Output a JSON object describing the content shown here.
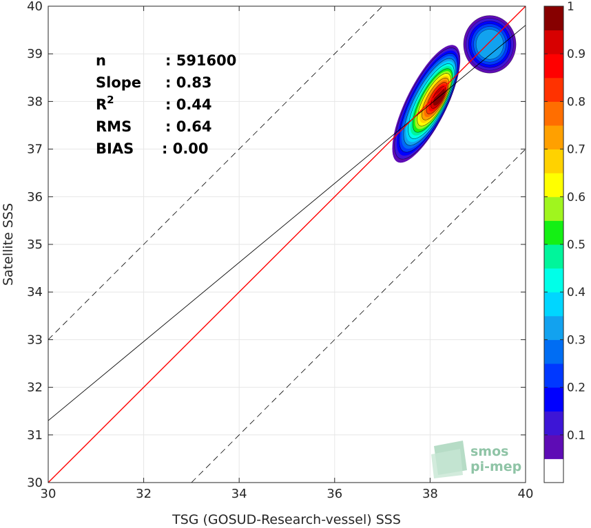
{
  "chart_data": {
    "type": "scatter-density",
    "xlabel": "TSG (GOSUD-Research-vessel) SSS",
    "ylabel": "Satellite SSS",
    "xlim": [
      30,
      40
    ],
    "ylim": [
      30,
      40
    ],
    "xticks": [
      30,
      32,
      34,
      36,
      38,
      40
    ],
    "yticks": [
      30,
      31,
      32,
      33,
      34,
      35,
      36,
      37,
      38,
      39,
      40
    ],
    "grid": true,
    "stats": [
      {
        "label": "n",
        "value": ": 591600"
      },
      {
        "label": "Slope",
        "value": ": 0.83"
      },
      {
        "label": "R",
        "sup": "2",
        "value": ": 0.44"
      },
      {
        "label": "RMS",
        "value": ": 0.64"
      },
      {
        "label": "BIAS",
        "value": ": 0.00"
      }
    ],
    "lines": {
      "identity": {
        "slope": 1,
        "intercept": 0,
        "color": "#ff0000"
      },
      "fit": {
        "slope": 0.83,
        "intercept": 6.4,
        "color": "#000000"
      },
      "plus_minus_band": 3
    },
    "density_peaks": [
      {
        "x": 38.2,
        "y": 38.1,
        "value": 1.0
      },
      {
        "x": 39.25,
        "y": 39.1,
        "value": 0.35
      }
    ],
    "colorbar": {
      "range": [
        0,
        1
      ],
      "ticks": [
        "0.1",
        "0.2",
        "0.3",
        "0.4",
        "0.5",
        "0.6",
        "0.7",
        "0.8",
        "0.9",
        "1"
      ],
      "colors": [
        "#ffffff",
        "#5e0cb5",
        "#3d15d6",
        "#0000ff",
        "#0038ff",
        "#006df3",
        "#12a2ef",
        "#00d6ff",
        "#00ffe8",
        "#00f59b",
        "#14f014",
        "#a0f51e",
        "#ffff00",
        "#ffd200",
        "#ffa000",
        "#ff6e00",
        "#ff3200",
        "#ff0000",
        "#d70000",
        "#870000"
      ]
    },
    "logo": {
      "line1": "smos",
      "line2": "pi-mep"
    }
  }
}
